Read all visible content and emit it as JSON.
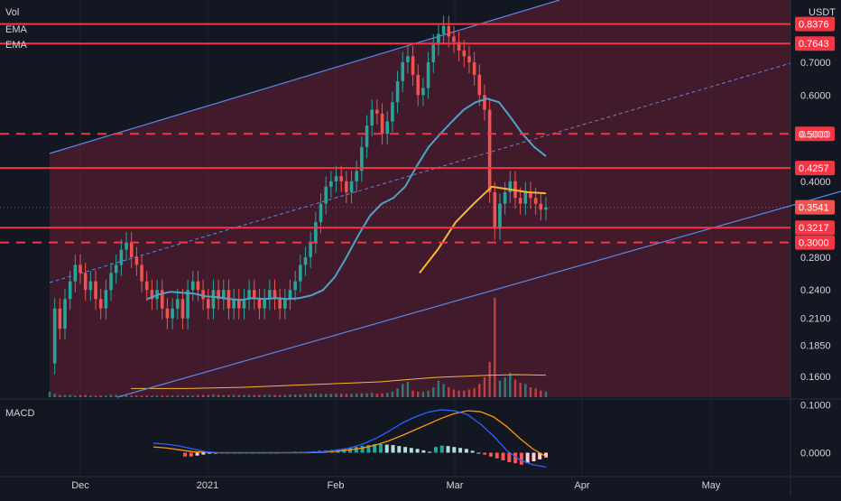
{
  "legend": {
    "vol": "Vol",
    "ema1": "EMA",
    "ema2": "EMA",
    "macd": "MACD"
  },
  "currency": "USDT",
  "colors": {
    "background": "#131722",
    "grid": "#1e222d",
    "up": "#26a69a",
    "down": "#ef5350",
    "level": "#f23645",
    "channel": "#5b87e6",
    "ema_short": "#4fa3c7",
    "ema_long": "#f7b733",
    "zone_fill": "#8e1f3d",
    "macd_line": "#2962ff",
    "signal_line": "#ff9800"
  },
  "chart_data": [
    {
      "type": "candlestick",
      "title": "",
      "scale": "log",
      "ylim": [
        0.145,
        0.93
      ],
      "x_ticks": [
        "Dec",
        "2021",
        "Feb",
        "Mar",
        "Apr",
        "May"
      ],
      "y_ticks": [
        "0.7000",
        "0.6000",
        "0.5000",
        "0.4000",
        "0.2800",
        "0.2400",
        "0.2100",
        "0.1850",
        "0.1600"
      ],
      "price_levels": [
        {
          "value": 0.8376,
          "label": "0.8376",
          "style": "solid"
        },
        {
          "value": 0.7643,
          "label": "0.7643",
          "style": "solid"
        },
        {
          "value": 0.5,
          "label": "0.5000",
          "style": "dashed"
        },
        {
          "value": 0.4257,
          "label": "0.4257",
          "style": "solid"
        },
        {
          "value": 0.3217,
          "label": "0.3217",
          "style": "solid"
        },
        {
          "value": 0.3,
          "label": "0.3000",
          "style": "dashed"
        }
      ],
      "current_price": {
        "value": 0.3541,
        "label": "0.3541"
      },
      "price_path": [
        0.17,
        0.22,
        0.2,
        0.23,
        0.25,
        0.27,
        0.26,
        0.24,
        0.25,
        0.23,
        0.22,
        0.24,
        0.26,
        0.27,
        0.29,
        0.3,
        0.28,
        0.27,
        0.25,
        0.24,
        0.23,
        0.24,
        0.22,
        0.21,
        0.22,
        0.23,
        0.21,
        0.24,
        0.25,
        0.24,
        0.23,
        0.22,
        0.24,
        0.23,
        0.24,
        0.22,
        0.23,
        0.22,
        0.23,
        0.24,
        0.23,
        0.22,
        0.23,
        0.24,
        0.23,
        0.22,
        0.23,
        0.24,
        0.25,
        0.27,
        0.28,
        0.3,
        0.33,
        0.36,
        0.39,
        0.4,
        0.41,
        0.4,
        0.38,
        0.4,
        0.42,
        0.47,
        0.52,
        0.56,
        0.55,
        0.5,
        0.53,
        0.58,
        0.64,
        0.7,
        0.72,
        0.66,
        0.6,
        0.62,
        0.7,
        0.76,
        0.8,
        0.83,
        0.79,
        0.77,
        0.74,
        0.72,
        0.7,
        0.66,
        0.6,
        0.56,
        0.38,
        0.32,
        0.36,
        0.38,
        0.4,
        0.37,
        0.36,
        0.38,
        0.37,
        0.36,
        0.35,
        0.3541
      ],
      "ema_short": [
        0.23,
        0.235,
        0.238,
        0.237,
        0.236,
        0.233,
        0.232,
        0.23,
        0.229,
        0.231,
        0.23,
        0.231,
        0.23,
        0.231,
        0.234,
        0.24,
        0.255,
        0.28,
        0.31,
        0.34,
        0.36,
        0.37,
        0.39,
        0.43,
        0.47,
        0.5,
        0.53,
        0.56,
        0.58,
        0.59,
        0.58,
        0.54,
        0.5,
        0.47,
        0.45
      ],
      "ema_long": [
        0.26,
        0.29,
        0.33,
        0.36,
        0.39,
        0.385,
        0.38,
        0.378
      ],
      "volume": [
        0.5,
        0.3,
        0.2,
        0.2,
        0.2,
        0.15,
        0.2,
        0.2,
        0.15,
        0.15,
        0.15,
        0.15,
        0.2,
        0.2,
        0.15,
        0.15,
        0.15,
        0.15,
        0.15,
        0.15,
        0.15,
        0.15,
        0.15,
        0.15,
        0.15,
        0.15,
        0.15,
        0.15,
        0.15,
        0.2,
        0.2,
        0.2,
        0.25,
        0.2,
        0.2,
        0.2,
        0.2,
        0.2,
        0.2,
        0.2,
        0.2,
        0.2,
        0.2,
        0.2,
        0.2,
        0.2,
        0.2,
        0.25,
        0.25,
        0.25,
        0.3,
        0.3,
        0.3,
        0.3,
        0.3,
        0.3,
        0.3,
        0.3,
        0.3,
        0.3,
        0.3,
        0.35,
        0.35,
        0.4,
        0.3,
        0.35,
        0.4,
        0.5,
        0.8,
        1.2,
        1.4,
        0.6,
        0.5,
        0.5,
        0.6,
        0.9,
        1.5,
        1.2,
        0.9,
        0.7,
        0.6,
        0.6,
        0.7,
        0.8,
        1.2,
        1.8,
        3.2,
        9.0,
        1.5,
        1.8,
        2.2,
        1.6,
        1.3,
        1.2,
        0.9,
        0.8,
        0.6,
        0.5
      ],
      "volume_ma": [
        0.3,
        0.3,
        0.3,
        0.35,
        0.4,
        0.5,
        0.6,
        0.7,
        0.8,
        0.9,
        1.1,
        1.3,
        1.4,
        1.5,
        1.55,
        1.5
      ]
    },
    {
      "type": "line",
      "title": "MACD",
      "ylim": [
        -0.035,
        0.105
      ],
      "y_ticks": [
        "0.1000",
        "0.0000"
      ],
      "macd": [
        0.02,
        0.018,
        0.014,
        0.008,
        0.002,
        0,
        0,
        0,
        0,
        0,
        0,
        0,
        0.001,
        0.002,
        0.005,
        0.01,
        0.018,
        0.03,
        0.045,
        0.062,
        0.075,
        0.085,
        0.09,
        0.088,
        0.08,
        0.06,
        0.035,
        0.005,
        -0.015,
        -0.025,
        -0.03
      ],
      "signal": [
        0.012,
        0.01,
        0.006,
        0.002,
        0.001,
        0,
        0,
        0,
        0,
        0,
        0,
        0,
        0,
        0.001,
        0.003,
        0.006,
        0.01,
        0.016,
        0.025,
        0.036,
        0.048,
        0.06,
        0.072,
        0.082,
        0.088,
        0.086,
        0.075,
        0.055,
        0.03,
        0.008,
        -0.008
      ],
      "histogram": [
        -0.008,
        -0.008,
        -0.006,
        -0.004,
        -0.002,
        -0.001,
        0,
        0,
        0,
        0,
        0,
        0,
        0,
        0,
        0,
        0,
        0.001,
        0.001,
        0.002,
        0.002,
        0.002,
        0.003,
        0.004,
        0.005,
        0.006,
        0.007,
        0.008,
        0.01,
        0.012,
        0.014,
        0.016,
        0.018,
        0.018,
        0.017,
        0.016,
        0.014,
        0.012,
        0.01,
        0.008,
        0.005,
        0.002,
        0.012,
        0.015,
        0.014,
        0.012,
        0.01,
        0.008,
        0.004,
        0.0,
        -0.004,
        -0.008,
        -0.012,
        -0.016,
        -0.02,
        -0.022,
        -0.025,
        -0.022,
        -0.018,
        -0.014,
        -0.01
      ]
    }
  ]
}
